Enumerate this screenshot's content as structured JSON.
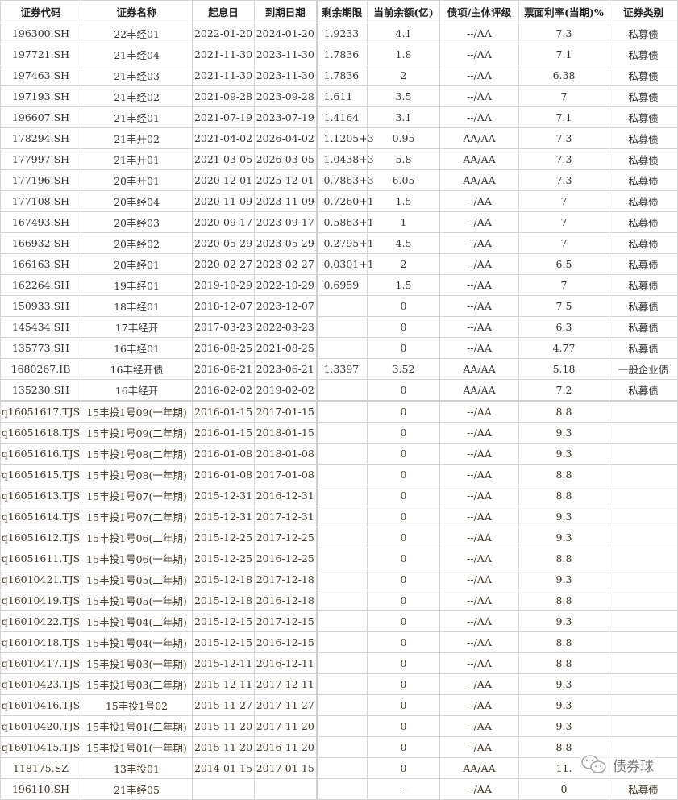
{
  "table": {
    "headers": [
      "证券代码",
      "证券名称",
      "起息日",
      "到期日期",
      "剩余期限",
      "当前余额(亿)",
      "债项/主体评级",
      "票面利率(当期)%",
      "证券类别"
    ],
    "rows": [
      [
        "196300.SH",
        "22丰经01",
        "2022-01-20",
        "2024-01-20",
        "1.9233",
        "4.1",
        "--/AA",
        "7.3",
        "私募债"
      ],
      [
        "197721.SH",
        "21丰经04",
        "2021-11-30",
        "2023-11-30",
        "1.7836",
        "1.8",
        "--/AA",
        "7.1",
        "私募债"
      ],
      [
        "197463.SH",
        "21丰经03",
        "2021-11-30",
        "2023-11-30",
        "1.7836",
        "2",
        "--/AA",
        "6.38",
        "私募债"
      ],
      [
        "197193.SH",
        "21丰经02",
        "2021-09-28",
        "2023-09-28",
        "1.611",
        "3.5",
        "--/AA",
        "7",
        "私募债"
      ],
      [
        "196607.SH",
        "21丰经01",
        "2021-07-19",
        "2023-07-19",
        "1.4164",
        "3.1",
        "--/AA",
        "7.1",
        "私募债"
      ],
      [
        "178294.SH",
        "21丰开02",
        "2021-04-02",
        "2026-04-02",
        "1.1205+3",
        "0.95",
        "AA/AA",
        "7.3",
        "私募债"
      ],
      [
        "177997.SH",
        "21丰开01",
        "2021-03-05",
        "2026-03-05",
        "1.0438+3",
        "5.8",
        "AA/AA",
        "7.3",
        "私募债"
      ],
      [
        "177196.SH",
        "20丰开01",
        "2020-12-01",
        "2025-12-01",
        "0.7863+3",
        "6.05",
        "AA/AA",
        "7.3",
        "私募债"
      ],
      [
        "177108.SH",
        "20丰经04",
        "2020-11-09",
        "2023-11-09",
        "0.7260+1",
        "1.5",
        "--/AA",
        "7",
        "私募债"
      ],
      [
        "167493.SH",
        "20丰经03",
        "2020-09-17",
        "2023-09-17",
        "0.5863+1",
        "1",
        "--/AA",
        "7",
        "私募债"
      ],
      [
        "166932.SH",
        "20丰经02",
        "2020-05-29",
        "2023-05-29",
        "0.2795+1",
        "4.5",
        "--/AA",
        "7",
        "私募债"
      ],
      [
        "166163.SH",
        "20丰经01",
        "2020-02-27",
        "2023-02-27",
        "0.0301+1",
        "2",
        "--/AA",
        "6.5",
        "私募债"
      ],
      [
        "162264.SH",
        "19丰经01",
        "2019-10-29",
        "2022-10-29",
        "0.6959",
        "1.5",
        "--/AA",
        "7",
        "私募债"
      ],
      [
        "150933.SH",
        "18丰经01",
        "2018-12-07",
        "2023-12-07",
        "",
        "0",
        "--/AA",
        "7.5",
        "私募债"
      ],
      [
        "145434.SH",
        "17丰经开",
        "2017-03-23",
        "2022-03-23",
        "",
        "0",
        "--/AA",
        "6.3",
        "私募债"
      ],
      [
        "135773.SH",
        "16丰经01",
        "2016-08-25",
        "2021-08-25",
        "",
        "0",
        "--/AA",
        "4.77",
        "私募债"
      ],
      [
        "1680267.IB",
        "16丰经开债",
        "2016-06-21",
        "2023-06-21",
        "1.3397",
        "3.52",
        "AA/AA",
        "5.18",
        "一般企业债"
      ],
      [
        "135230.SH",
        "16丰经开",
        "2016-02-02",
        "2019-02-02",
        "",
        "0",
        "AA/AA",
        "7.2",
        "私募债"
      ],
      [
        "q16051617.TJS",
        "15丰投1号09(一年期)",
        "2016-01-15",
        "2017-01-15",
        "",
        "0",
        "--/AA",
        "8.8",
        ""
      ],
      [
        "q16051618.TJS",
        "15丰投1号09(二年期)",
        "2016-01-15",
        "2018-01-15",
        "",
        "0",
        "--/AA",
        "9.3",
        ""
      ],
      [
        "q16051616.TJS",
        "15丰投1号08(二年期)",
        "2016-01-08",
        "2018-01-08",
        "",
        "0",
        "--/AA",
        "9.3",
        ""
      ],
      [
        "q16051615.TJS",
        "15丰投1号08(一年期)",
        "2016-01-08",
        "2017-01-08",
        "",
        "0",
        "--/AA",
        "8.8",
        ""
      ],
      [
        "q16051613.TJS",
        "15丰投1号07(一年期)",
        "2015-12-31",
        "2016-12-31",
        "",
        "0",
        "--/AA",
        "8.8",
        ""
      ],
      [
        "q16051614.TJS",
        "15丰投1号07(二年期)",
        "2015-12-31",
        "2017-12-31",
        "",
        "0",
        "--/AA",
        "9.3",
        ""
      ],
      [
        "q16051612.TJS",
        "15丰投1号06(二年期)",
        "2015-12-25",
        "2017-12-25",
        "",
        "0",
        "--/AA",
        "9.3",
        ""
      ],
      [
        "q16051611.TJS",
        "15丰投1号06(一年期)",
        "2015-12-25",
        "2016-12-25",
        "",
        "0",
        "--/AA",
        "8.8",
        ""
      ],
      [
        "q16010421.TJS",
        "15丰投1号05(二年期)",
        "2015-12-18",
        "2017-12-18",
        "",
        "0",
        "--/AA",
        "9.3",
        ""
      ],
      [
        "q16010419.TJS",
        "15丰投1号05(一年期)",
        "2015-12-18",
        "2016-12-18",
        "",
        "0",
        "--/AA",
        "8.8",
        ""
      ],
      [
        "q16010422.TJS",
        "15丰投1号04(二年期)",
        "2015-12-15",
        "2017-12-15",
        "",
        "0",
        "--/AA",
        "9.3",
        ""
      ],
      [
        "q16010418.TJS",
        "15丰投1号04(一年期)",
        "2015-12-15",
        "2016-12-15",
        "",
        "0",
        "--/AA",
        "8.8",
        ""
      ],
      [
        "q16010417.TJS",
        "15丰投1号03(一年期)",
        "2015-12-11",
        "2016-12-11",
        "",
        "0",
        "--/AA",
        "8.8",
        ""
      ],
      [
        "q16010423.TJS",
        "15丰投1号03(二年期)",
        "2015-12-11",
        "2017-12-11",
        "",
        "0",
        "--/AA",
        "9.3",
        ""
      ],
      [
        "q16010416.TJS",
        "15丰投1号02",
        "2015-11-27",
        "2017-11-27",
        "",
        "0",
        "--/AA",
        "9.3",
        ""
      ],
      [
        "q16010420.TJS",
        "15丰投1号01(二年期)",
        "2015-11-20",
        "2017-11-20",
        "",
        "0",
        "--/AA",
        "9.3",
        ""
      ],
      [
        "q16010415.TJS",
        "15丰投1号01(一年期)",
        "2015-11-20",
        "2016-11-20",
        "",
        "0",
        "--/AA",
        "8.8",
        ""
      ],
      [
        "118175.SZ",
        "13丰投01",
        "2014-01-15",
        "2017-01-15",
        "",
        "0",
        "AA/AA",
        "11.",
        ""
      ],
      [
        "196110.SH",
        "21丰经05",
        "",
        "",
        "",
        "--",
        "--/AA",
        "0",
        "私募债"
      ]
    ]
  },
  "watermark": {
    "text": "债券球",
    "icon": "wechat-icon"
  }
}
